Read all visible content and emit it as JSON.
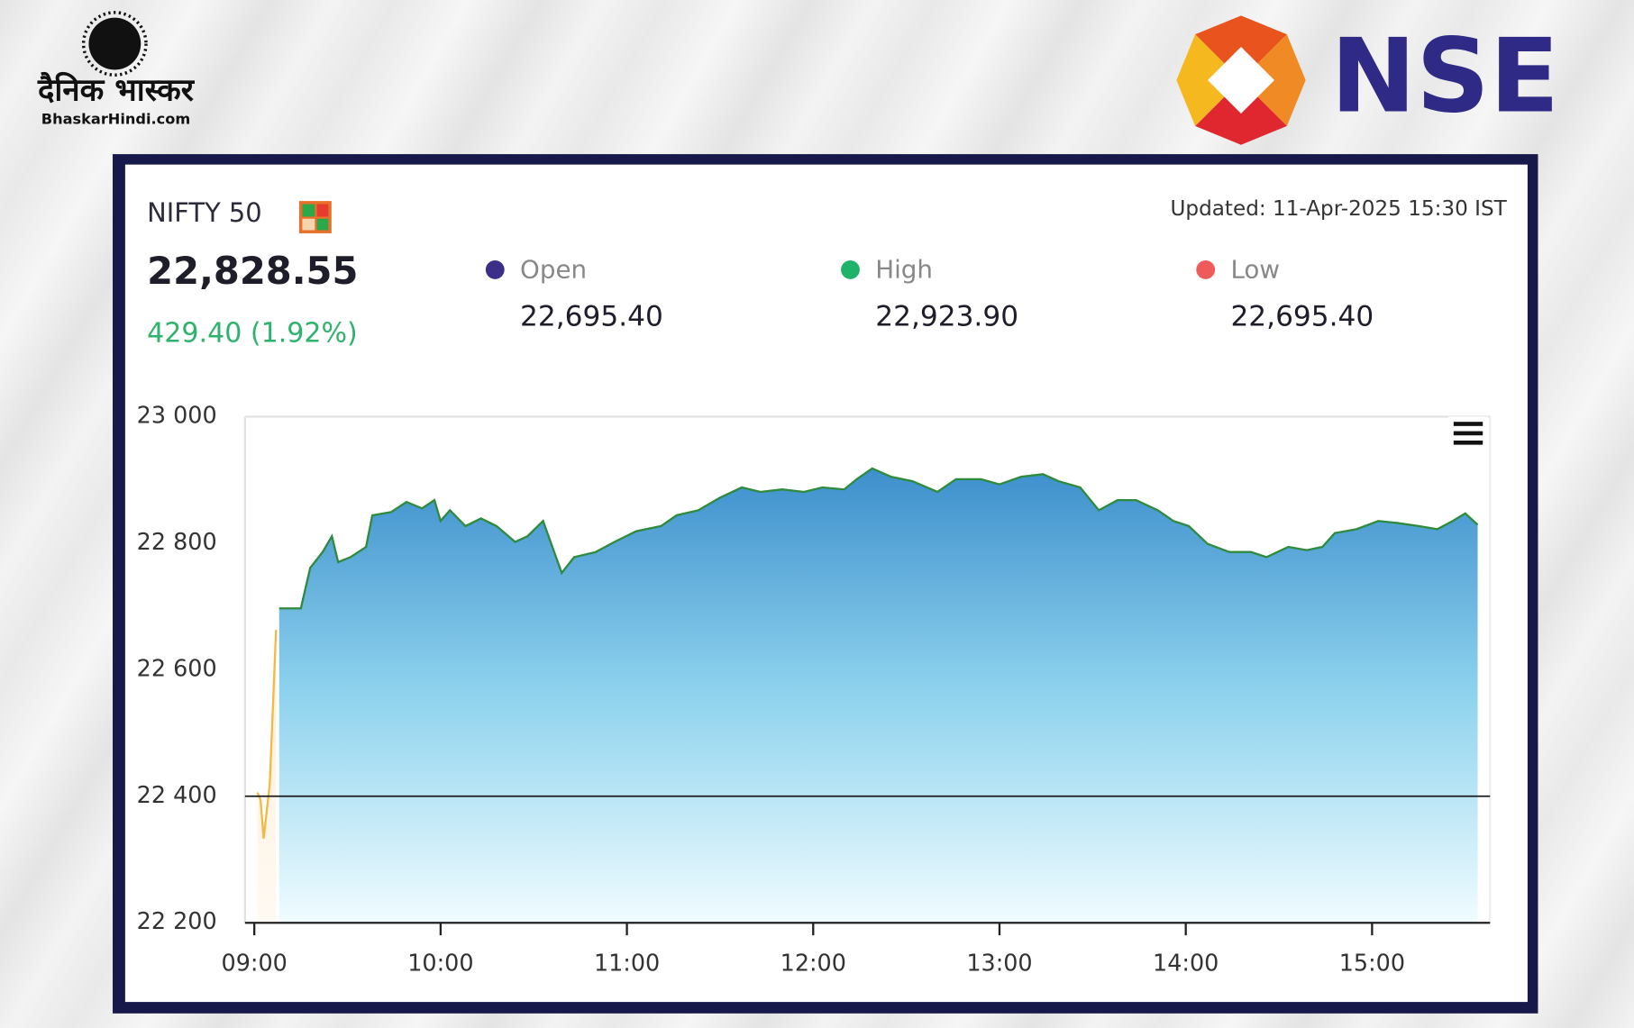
{
  "branding": {
    "bhaskar_name": "दैनिक भास्कर",
    "bhaskar_site": "BhaskarHindi.com",
    "exchange": "NSE"
  },
  "quote": {
    "index": "NIFTY 50",
    "updated": "Updated: 11-Apr-2025 15:30 IST",
    "price": "22,828.55",
    "change": "429.40 (1.92%)",
    "stats": [
      {
        "label": "Open",
        "value": "22,695.40",
        "color": "#3b2f8a"
      },
      {
        "label": "High",
        "value": "22,923.90",
        "color": "#1fb36a"
      },
      {
        "label": "Low",
        "value": "22,695.40",
        "color": "#ef5a5a"
      }
    ]
  },
  "chart_data": {
    "type": "area",
    "xlim": [
      "08:57",
      "15:38"
    ],
    "xticks": [
      "09:00",
      "10:00",
      "11:00",
      "12:00",
      "13:00",
      "14:00",
      "15:00"
    ],
    "ylim": [
      22200,
      23000
    ],
    "yticks": [
      {
        "value": 22200,
        "label": "22 200"
      },
      {
        "value": 22400,
        "label": "22 400"
      },
      {
        "value": 22600,
        "label": "22 600"
      },
      {
        "value": 22800,
        "label": "22 800"
      },
      {
        "value": 23000,
        "label": "23 000"
      }
    ],
    "reference_line": 22400,
    "series": [
      {
        "color": "#f5b942",
        "x": [
          "09:01",
          "09:02",
          "09:03",
          "09:05",
          "09:07"
        ],
        "values": [
          22406,
          22395,
          22333,
          22420,
          22663
        ]
      },
      {
        "color": "#2e8b3e",
        "x": [
          "09:08",
          "09:15",
          "09:18",
          "09:22",
          "09:25",
          "09:27",
          "09:31",
          "09:36",
          "09:38",
          "09:44",
          "09:49",
          "09:54",
          "09:58",
          "10:00",
          "10:03",
          "10:08",
          "10:13",
          "10:18",
          "10:24",
          "10:28",
          "10:33",
          "10:36",
          "10:39",
          "10:43",
          "10:50",
          "10:56",
          "11:03",
          "11:11",
          "11:16",
          "11:23",
          "11:30",
          "11:37",
          "11:43",
          "11:50",
          "11:57",
          "12:03",
          "12:10",
          "12:14",
          "12:19",
          "12:25",
          "12:32",
          "12:40",
          "12:46",
          "12:54",
          "13:00",
          "13:07",
          "13:14",
          "13:19",
          "13:26",
          "13:32",
          "13:38",
          "13:44",
          "13:51",
          "13:56",
          "14:01",
          "14:07",
          "14:14",
          "14:21",
          "14:26",
          "14:33",
          "14:39",
          "14:44",
          "14:48",
          "14:55",
          "15:02",
          "15:08",
          "15:15",
          "15:21",
          "15:26",
          "15:30",
          "15:34"
        ],
        "values": [
          22697,
          22697,
          22761,
          22786,
          22811,
          22770,
          22778,
          22794,
          22844,
          22849,
          22865,
          22855,
          22868,
          22835,
          22852,
          22827,
          22839,
          22827,
          22802,
          22811,
          22835,
          22794,
          22753,
          22778,
          22786,
          22802,
          22819,
          22827,
          22844,
          22852,
          22872,
          22888,
          22881,
          22885,
          22881,
          22888,
          22885,
          22901,
          22918,
          22905,
          22898,
          22881,
          22901,
          22901,
          22893,
          22905,
          22909,
          22898,
          22888,
          22852,
          22868,
          22868,
          22852,
          22835,
          22827,
          22799,
          22786,
          22786,
          22778,
          22794,
          22789,
          22794,
          22816,
          22822,
          22835,
          22832,
          22827,
          22822,
          22835,
          22847,
          22829
        ]
      }
    ]
  }
}
